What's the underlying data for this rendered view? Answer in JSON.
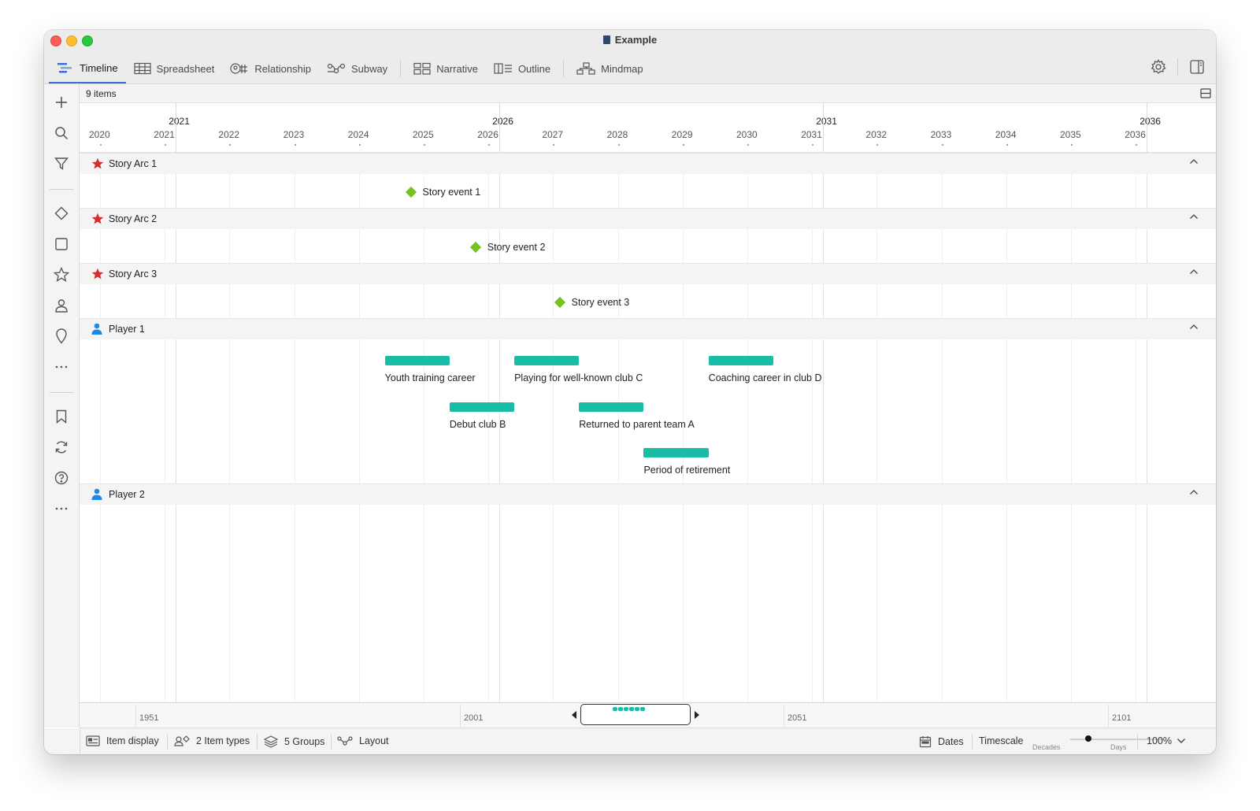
{
  "window": {
    "title": "Example"
  },
  "tabs": [
    {
      "label": "Timeline",
      "icon": "timeline-icon",
      "active": true
    },
    {
      "label": "Spreadsheet",
      "icon": "table-icon"
    },
    {
      "label": "Relationship",
      "icon": "relationship-icon"
    },
    {
      "label": "Subway",
      "icon": "subway-icon"
    },
    {
      "label": "Narrative",
      "icon": "narrative-icon"
    },
    {
      "label": "Outline",
      "icon": "outline-icon"
    },
    {
      "label": "Mindmap",
      "icon": "mindmap-icon"
    }
  ],
  "infobar": {
    "count": "9 items"
  },
  "ruler": {
    "major_years": [
      "2021",
      "2026",
      "2031",
      "2036"
    ],
    "years": [
      "2020",
      "2021",
      "2022",
      "2023",
      "2024",
      "2025",
      "2026",
      "2027",
      "2028",
      "2029",
      "2030",
      "2031",
      "2032",
      "2033",
      "2034",
      "2035",
      "2036"
    ]
  },
  "groups": [
    {
      "name": "Story Arc 1",
      "icon": "star-icon",
      "color": "#d32f2f"
    },
    {
      "name": "Story Arc 2",
      "icon": "star-icon",
      "color": "#d32f2f"
    },
    {
      "name": "Story Arc 3",
      "icon": "star-icon",
      "color": "#d32f2f"
    },
    {
      "name": "Player 1",
      "icon": "person-icon",
      "color": "#1e88e5"
    },
    {
      "name": "Player 2",
      "icon": "person-icon",
      "color": "#1e88e5"
    }
  ],
  "events": [
    {
      "label": "Story event 1",
      "date": 2024.8
    },
    {
      "label": "Story event 2",
      "date": 2025.8
    },
    {
      "label": "Story event 3",
      "date": 2027.1
    }
  ],
  "bars": [
    {
      "label": "Youth training career",
      "start": 2024.4,
      "end": 2025.4
    },
    {
      "label": "Playing for well-known club C",
      "start": 2026.4,
      "end": 2027.4
    },
    {
      "label": "Coaching career in club D",
      "start": 2029.4,
      "end": 2030.4
    },
    {
      "label": "Debut club B",
      "start": 2025.4,
      "end": 2026.4
    },
    {
      "label": "Returned to parent team A",
      "start": 2027.4,
      "end": 2028.4
    },
    {
      "label": "Period of retirement",
      "start": 2028.4,
      "end": 2029.4
    }
  ],
  "overview": {
    "labels": [
      "1951",
      "2001",
      "2051",
      "2101"
    ]
  },
  "statusbar": {
    "item_display": "Item display",
    "item_types": "2 Item types",
    "groups": "5 Groups",
    "layout": "Layout",
    "dates": "Dates",
    "timescale": "Timescale",
    "slider_min": "Decades",
    "slider_max": "Days",
    "zoom": "100%"
  },
  "colors": {
    "accent": "#3b6fd4",
    "bar": "#19bda5",
    "event": "#74c421"
  }
}
